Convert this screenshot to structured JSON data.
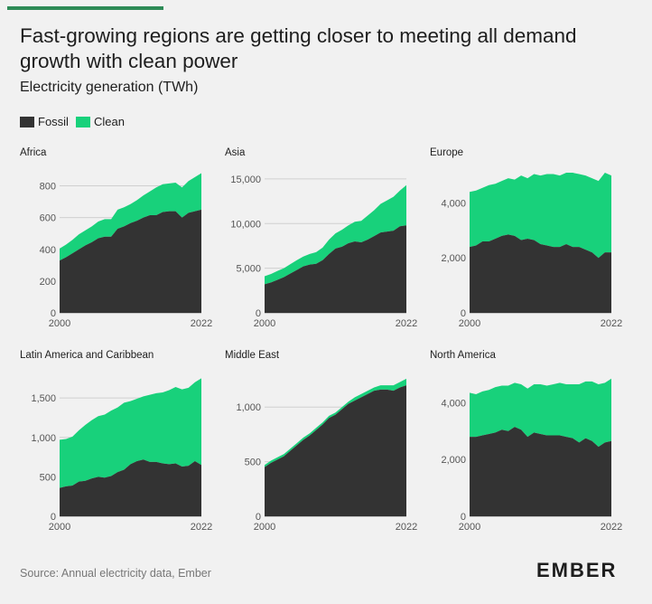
{
  "header": {
    "title": "Fast-growing regions are getting closer to meeting all demand growth with clean power",
    "subtitle": "Electricity generation (TWh)"
  },
  "legend": [
    {
      "label": "Fossil",
      "color": "#333333"
    },
    {
      "label": "Clean",
      "color": "#18d17b"
    }
  ],
  "colors": {
    "fossil": "#333333",
    "clean": "#18d17b",
    "accent": "#2e8b57",
    "background": "#f1f1f1"
  },
  "footer": {
    "source": "Source: Annual electricity data, Ember",
    "logo": "EMBER"
  },
  "chart_data": [
    {
      "type": "area",
      "title": "Africa",
      "x": [
        2000,
        2001,
        2002,
        2003,
        2004,
        2005,
        2006,
        2007,
        2008,
        2009,
        2010,
        2011,
        2012,
        2013,
        2014,
        2015,
        2016,
        2017,
        2018,
        2019,
        2020,
        2021,
        2022
      ],
      "series": [
        {
          "name": "Fossil",
          "values": [
            330,
            350,
            375,
            400,
            425,
            445,
            470,
            480,
            480,
            530,
            545,
            565,
            580,
            600,
            615,
            615,
            635,
            640,
            640,
            600,
            630,
            640,
            650
          ]
        },
        {
          "name": "Clean",
          "values": [
            75,
            80,
            85,
            95,
            95,
            100,
            105,
            110,
            110,
            120,
            120,
            120,
            130,
            140,
            150,
            175,
            175,
            175,
            180,
            190,
            200,
            215,
            230
          ]
        }
      ],
      "stacked": true,
      "ylim": [
        0,
        900
      ],
      "yticks": [
        0,
        200,
        400,
        600,
        800
      ],
      "xticks": [
        "2000",
        "2022"
      ]
    },
    {
      "type": "area",
      "title": "Asia",
      "x": [
        2000,
        2001,
        2002,
        2003,
        2004,
        2005,
        2006,
        2007,
        2008,
        2009,
        2010,
        2011,
        2012,
        2013,
        2014,
        2015,
        2016,
        2017,
        2018,
        2019,
        2020,
        2021,
        2022
      ],
      "series": [
        {
          "name": "Fossil",
          "values": [
            3200,
            3400,
            3700,
            4000,
            4400,
            4800,
            5200,
            5400,
            5500,
            5900,
            6600,
            7200,
            7400,
            7800,
            8000,
            7900,
            8200,
            8600,
            9000,
            9100,
            9200,
            9700,
            9800
          ]
        },
        {
          "name": "Clean",
          "values": [
            900,
            950,
            1000,
            1000,
            1050,
            1100,
            1100,
            1200,
            1300,
            1400,
            1600,
            1700,
            1900,
            2000,
            2200,
            2400,
            2700,
            2900,
            3200,
            3500,
            3800,
            4000,
            4500
          ]
        }
      ],
      "stacked": true,
      "ylim": [
        0,
        16000
      ],
      "yticks": [
        0,
        5000,
        10000,
        15000
      ],
      "ytick_labels": [
        "0",
        "5,000",
        "10,000",
        "15,000"
      ],
      "xticks": [
        "2000",
        "2022"
      ]
    },
    {
      "type": "area",
      "title": "Europe",
      "x": [
        2000,
        2001,
        2002,
        2003,
        2004,
        2005,
        2006,
        2007,
        2008,
        2009,
        2010,
        2011,
        2012,
        2013,
        2014,
        2015,
        2016,
        2017,
        2018,
        2019,
        2020,
        2021,
        2022
      ],
      "series": [
        {
          "name": "Fossil",
          "values": [
            2400,
            2450,
            2600,
            2600,
            2700,
            2800,
            2850,
            2800,
            2650,
            2700,
            2650,
            2500,
            2450,
            2400,
            2400,
            2500,
            2400,
            2400,
            2300,
            2200,
            2000,
            2200,
            2200
          ]
        },
        {
          "name": "Clean",
          "values": [
            2000,
            2000,
            1950,
            2050,
            2000,
            2000,
            2050,
            2050,
            2350,
            2200,
            2400,
            2500,
            2600,
            2650,
            2600,
            2600,
            2700,
            2650,
            2700,
            2700,
            2800,
            2900,
            2800
          ]
        }
      ],
      "stacked": true,
      "ylim": [
        0,
        5200
      ],
      "yticks": [
        0,
        2000,
        4000
      ],
      "ytick_labels": [
        "0",
        "2,000",
        "4,000"
      ],
      "xticks": [
        "2000",
        "2022"
      ]
    },
    {
      "type": "area",
      "title": "Latin America and Caribbean",
      "x": [
        2000,
        2001,
        2002,
        2003,
        2004,
        2005,
        2006,
        2007,
        2008,
        2009,
        2010,
        2011,
        2012,
        2013,
        2014,
        2015,
        2016,
        2017,
        2018,
        2019,
        2020,
        2021,
        2022
      ],
      "series": [
        {
          "name": "Fossil",
          "values": [
            360,
            380,
            390,
            440,
            450,
            480,
            500,
            490,
            510,
            560,
            590,
            660,
            700,
            720,
            690,
            690,
            670,
            660,
            670,
            630,
            640,
            700,
            650
          ]
        },
        {
          "name": "Clean",
          "values": [
            610,
            600,
            620,
            650,
            710,
            740,
            770,
            800,
            830,
            820,
            850,
            800,
            790,
            800,
            850,
            870,
            900,
            940,
            970,
            980,
            990,
            1000,
            1100
          ]
        }
      ],
      "stacked": true,
      "ylim": [
        0,
        1800
      ],
      "yticks": [
        0,
        500,
        1000,
        1500
      ],
      "ytick_labels": [
        "0",
        "500",
        "1,000",
        "1,500"
      ],
      "xticks": [
        "2000",
        "2022"
      ]
    },
    {
      "type": "area",
      "title": "Middle East",
      "x": [
        2000,
        2001,
        2002,
        2003,
        2004,
        2005,
        2006,
        2007,
        2008,
        2009,
        2010,
        2011,
        2012,
        2013,
        2014,
        2015,
        2016,
        2017,
        2018,
        2019,
        2020,
        2021,
        2022
      ],
      "series": [
        {
          "name": "Fossil",
          "values": [
            450,
            490,
            520,
            550,
            600,
            650,
            700,
            740,
            790,
            840,
            900,
            930,
            980,
            1030,
            1060,
            1090,
            1120,
            1150,
            1160,
            1160,
            1150,
            1180,
            1200
          ]
        },
        {
          "name": "Clean",
          "values": [
            20,
            20,
            20,
            20,
            20,
            20,
            20,
            20,
            20,
            20,
            20,
            20,
            20,
            20,
            30,
            30,
            30,
            30,
            40,
            40,
            50,
            50,
            60
          ]
        }
      ],
      "stacked": true,
      "ylim": [
        0,
        1300
      ],
      "yticks": [
        0,
        500,
        1000
      ],
      "ytick_labels": [
        "0",
        "500",
        "1,000"
      ],
      "xticks": [
        "2000",
        "2022"
      ]
    },
    {
      "type": "area",
      "title": "North America",
      "x": [
        2000,
        2001,
        2002,
        2003,
        2004,
        2005,
        2006,
        2007,
        2008,
        2009,
        2010,
        2011,
        2012,
        2013,
        2014,
        2015,
        2016,
        2017,
        2018,
        2019,
        2020,
        2021,
        2022
      ],
      "series": [
        {
          "name": "Fossil",
          "values": [
            2800,
            2800,
            2850,
            2900,
            2950,
            3050,
            3000,
            3150,
            3050,
            2800,
            2950,
            2900,
            2850,
            2850,
            2850,
            2800,
            2750,
            2600,
            2750,
            2650,
            2450,
            2600,
            2650
          ]
        },
        {
          "name": "Clean",
          "values": [
            1550,
            1500,
            1550,
            1550,
            1600,
            1550,
            1600,
            1550,
            1600,
            1700,
            1700,
            1750,
            1750,
            1800,
            1850,
            1850,
            1900,
            2050,
            2000,
            2100,
            2200,
            2100,
            2200
          ]
        }
      ],
      "stacked": true,
      "ylim": [
        0,
        5000
      ],
      "yticks": [
        0,
        2000,
        4000
      ],
      "ytick_labels": [
        "0",
        "2,000",
        "4,000"
      ],
      "xticks": [
        "2000",
        "2022"
      ]
    }
  ]
}
